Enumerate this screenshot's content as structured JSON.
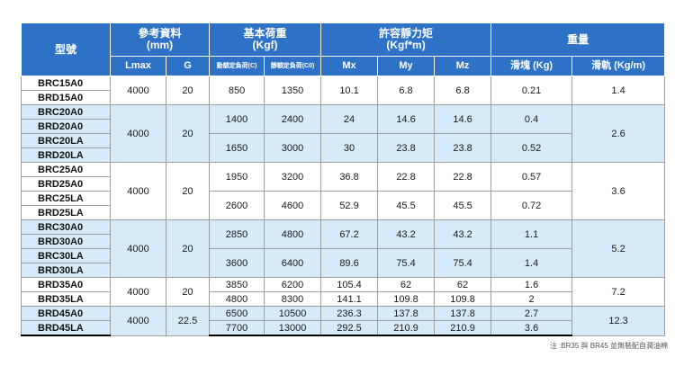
{
  "headers": {
    "model": "型號",
    "ref": "參考資料\n(mm)",
    "load": "基本荷重\n(Kgf)",
    "moment": "許容靜力矩\n(Kgf*m)",
    "weight": "重量",
    "lmax": "Lmax",
    "g": "G",
    "dyn": "動額定負荷(C)",
    "stat": "靜額定負荷(C0)",
    "mx": "Mx",
    "my": "My",
    "mz": "Mz",
    "slider": "滑塊 (Kg)",
    "rail": "滑軌 (Kg/m)"
  },
  "rows": [
    {
      "m": "BRC15A0",
      "lmax": "4000",
      "g": "20",
      "c": "850",
      "c0": "1350",
      "mx": "10.1",
      "my": "6.8",
      "mz": "6.8",
      "ws": "0.21",
      "wr": "1.4"
    },
    {
      "m": "BRD15A0"
    },
    {
      "m": "BRC20A0",
      "lmax": "4000",
      "g": "20",
      "c": "1400",
      "c0": "2400",
      "mx": "24",
      "my": "14.6",
      "mz": "14.6",
      "ws": "0.4",
      "wr": "2.6"
    },
    {
      "m": "BRD20A0"
    },
    {
      "m": "BRC20LA",
      "c": "1650",
      "c0": "3000",
      "mx": "30",
      "my": "23.8",
      "mz": "23.8",
      "ws": "0.52"
    },
    {
      "m": "BRD20LA"
    },
    {
      "m": "BRC25A0",
      "lmax": "4000",
      "g": "20",
      "c": "1950",
      "c0": "3200",
      "mx": "36.8",
      "my": "22.8",
      "mz": "22.8",
      "ws": "0.57",
      "wr": "3.6"
    },
    {
      "m": "BRD25A0"
    },
    {
      "m": "BRC25LA",
      "c": "2600",
      "c0": "4600",
      "mx": "52.9",
      "my": "45.5",
      "mz": "45.5",
      "ws": "0.72"
    },
    {
      "m": "BRD25LA"
    },
    {
      "m": "BRC30A0",
      "lmax": "4000",
      "g": "20",
      "c": "2850",
      "c0": "4800",
      "mx": "67.2",
      "my": "43.2",
      "mz": "43.2",
      "ws": "1.1",
      "wr": "5.2"
    },
    {
      "m": "BRD30A0"
    },
    {
      "m": "BRC30LA",
      "c": "3600",
      "c0": "6400",
      "mx": "89.6",
      "my": "75.4",
      "mz": "75.4",
      "ws": "1.4"
    },
    {
      "m": "BRD30LA"
    },
    {
      "m": "BRD35A0",
      "lmax": "4000",
      "g": "20",
      "c": "3850",
      "c0": "6200",
      "mx": "105.4",
      "my": "62",
      "mz": "62",
      "ws": "1.6",
      "wr": "7.2"
    },
    {
      "m": "BRD35LA",
      "c": "4800",
      "c0": "8300",
      "mx": "141.1",
      "my": "109.8",
      "mz": "109.8",
      "ws": "2"
    },
    {
      "m": "BRD45A0",
      "lmax": "4000",
      "g": "22.5",
      "c": "6500",
      "c0": "10500",
      "mx": "236.3",
      "my": "137.8",
      "mz": "137.8",
      "ws": "2.7",
      "wr": "12.3"
    },
    {
      "m": "BRD45LA",
      "c": "7700",
      "c0": "13000",
      "mx": "292.5",
      "my": "210.9",
      "mz": "210.9",
      "ws": "3.6"
    }
  ],
  "note": "注 :BR35 與 BR45 並無裝配自潤油棉"
}
